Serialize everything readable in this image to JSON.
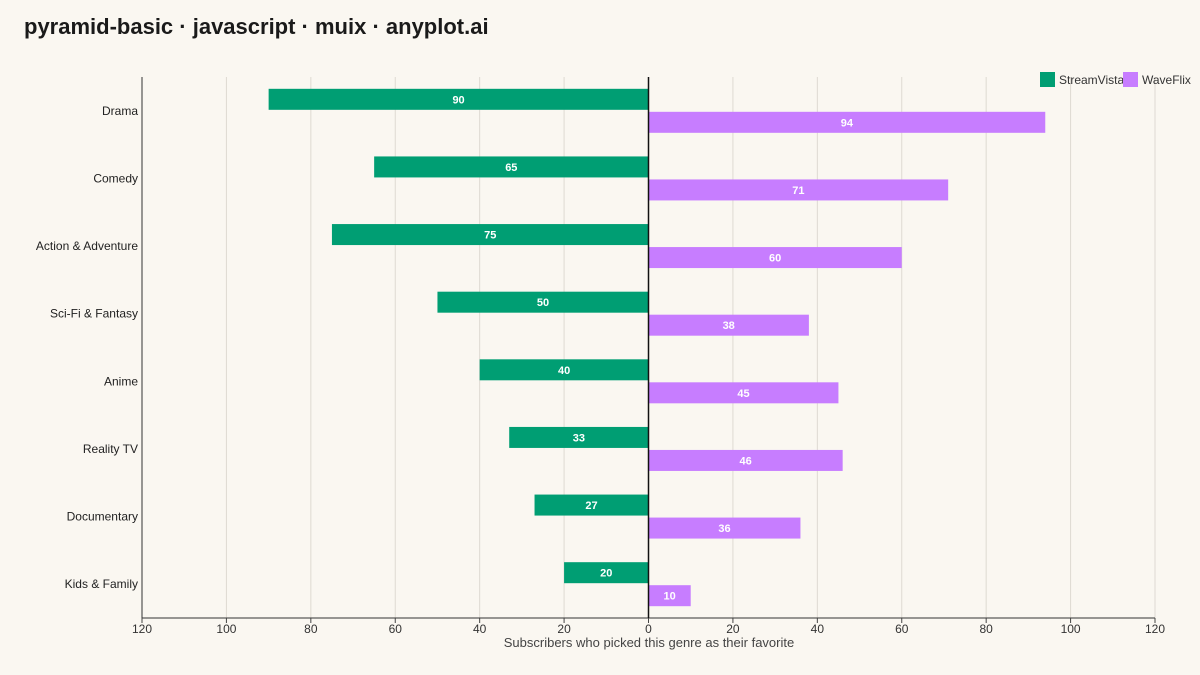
{
  "title": "pyramid-basic · javascript · muix · anyplot.ai",
  "chart_data": {
    "type": "bar",
    "orientation": "horizontal-diverging",
    "xlabel": "Subscribers who picked this genre as their favorite",
    "ylabel": "",
    "xlim": [
      -120,
      120
    ],
    "xticks": [
      -120,
      -100,
      -80,
      -60,
      -40,
      -20,
      0,
      20,
      40,
      60,
      80,
      100,
      120
    ],
    "xtick_labels": [
      "120",
      "100",
      "80",
      "60",
      "40",
      "20",
      "0",
      "20",
      "40",
      "60",
      "80",
      "100",
      "120"
    ],
    "grid": "vertical",
    "legend": "top-right",
    "categories": [
      "Drama",
      "Comedy",
      "Action & Adventure",
      "Sci-Fi & Fantasy",
      "Anime",
      "Reality TV",
      "Documentary",
      "Kids & Family"
    ],
    "series": [
      {
        "name": "StreamVista",
        "side": "left",
        "color": "#009e73",
        "values": [
          90,
          65,
          75,
          50,
          40,
          33,
          27,
          20
        ]
      },
      {
        "name": "WaveFlix",
        "side": "right",
        "color": "#c77dff",
        "values": [
          94,
          71,
          60,
          38,
          45,
          46,
          36,
          10
        ]
      }
    ]
  }
}
